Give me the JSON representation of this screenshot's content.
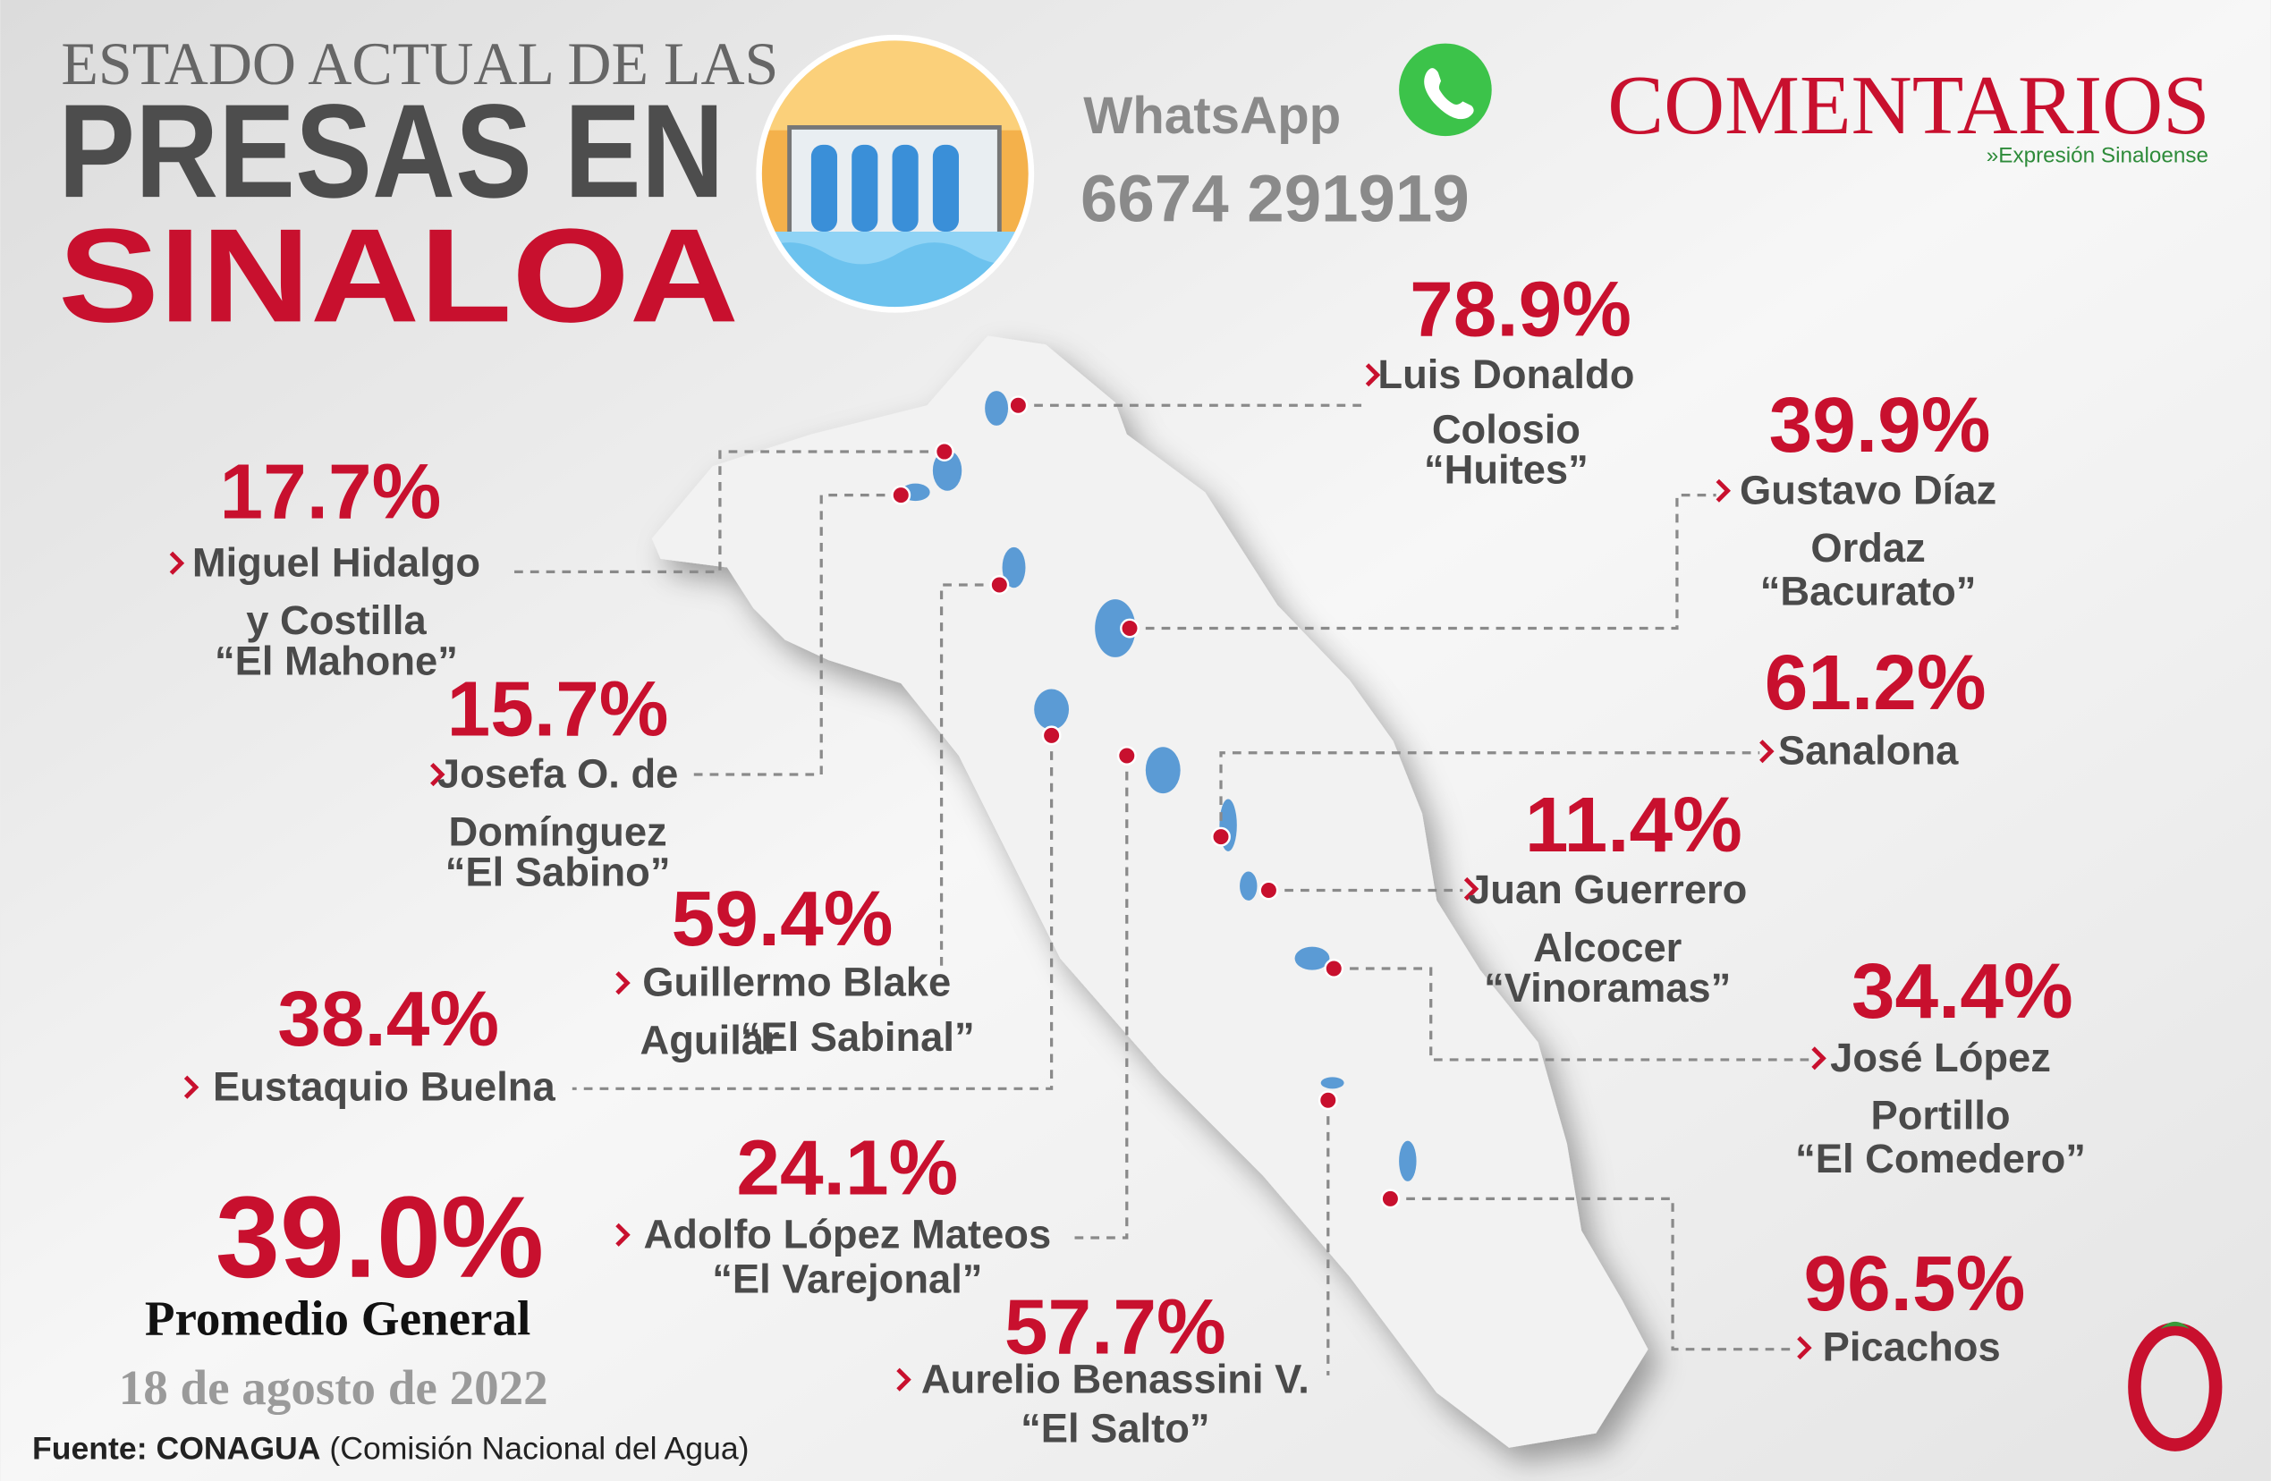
{
  "header": {
    "title_line1": "ESTADO ACTUAL DE LAS",
    "title_line2": "PRESAS EN",
    "title_line3": "SINALOA"
  },
  "contact": {
    "app": "WhatsApp",
    "phone": "6674 291919"
  },
  "brand": {
    "name": "COMENTARIOS",
    "tagline": "»Expresión Sinaloense"
  },
  "dams": [
    {
      "percent": "78.9%",
      "lines": [
        "Luis Donaldo",
        "Colosio",
        "“Huites”"
      ]
    },
    {
      "percent": "39.9%",
      "lines": [
        "Gustavo Díaz",
        "Ordaz",
        "“Bacurato”"
      ]
    },
    {
      "percent": "61.2%",
      "lines": [
        "Sanalona"
      ]
    },
    {
      "percent": "11.4%",
      "lines": [
        "Juan Guerrero",
        "Alcocer",
        "“Vinoramas”"
      ]
    },
    {
      "percent": "34.4%",
      "lines": [
        "José López",
        "Portillo",
        "“El Comedero”"
      ]
    },
    {
      "percent": "96.5%",
      "lines": [
        "Picachos"
      ]
    },
    {
      "percent": "57.7%",
      "lines": [
        "Aurelio   Benassini V.",
        "“El Salto”"
      ]
    },
    {
      "percent": "24.1%",
      "lines": [
        "Adolfo López Mateos",
        "“El Varejonal”"
      ]
    },
    {
      "percent": "38.4%",
      "lines": [
        "Eustaquio Buelna"
      ]
    },
    {
      "percent": "59.4%",
      "lines": [
        "Guillermo Blake",
        "Aguilar",
        "“El Sabinal”"
      ]
    },
    {
      "percent": "15.7%",
      "lines": [
        "Josefa O. de",
        "Domínguez",
        "“El Sabino”"
      ]
    },
    {
      "percent": "17.7%",
      "lines": [
        "Miguel Hidalgo",
        "y Costilla",
        "“El Mahone”"
      ]
    }
  ],
  "summary": {
    "average": "39.0%",
    "average_label": "Promedio General",
    "date": "18 de agosto de 2022"
  },
  "source": {
    "label": "Fuente:",
    "org": "CONAGUA",
    "detail": "(Comisión Nacional del Agua)"
  }
}
